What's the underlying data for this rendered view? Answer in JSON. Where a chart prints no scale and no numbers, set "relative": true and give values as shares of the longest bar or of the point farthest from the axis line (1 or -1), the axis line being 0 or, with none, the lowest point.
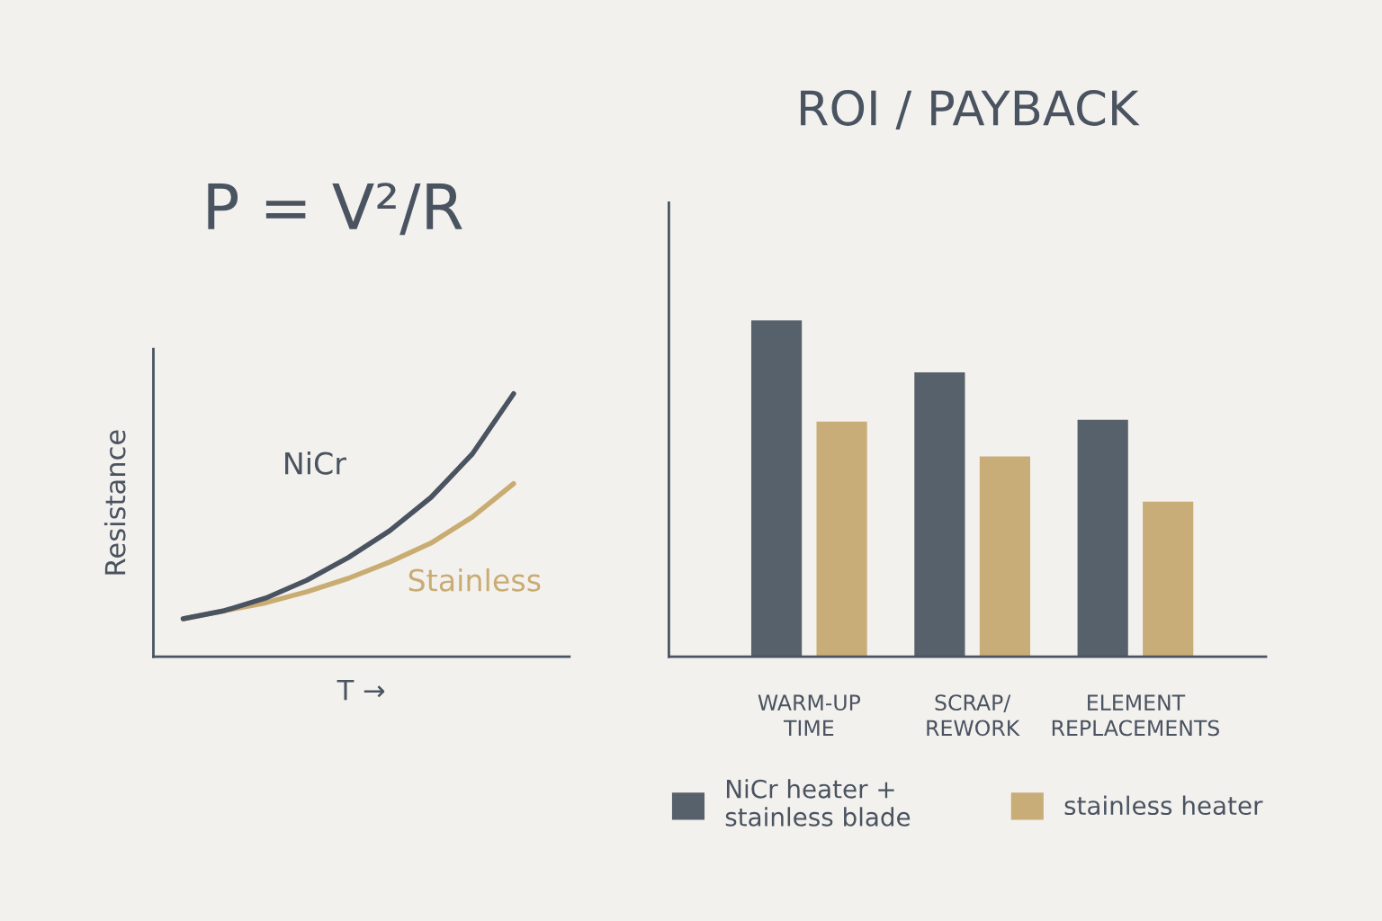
{
  "chart_data": [
    {
      "type": "line",
      "xlabel": "T →",
      "ylabel": "Resistance",
      "annotations": [
        "P = V²/R"
      ],
      "relative": true,
      "tick_labels": false,
      "grid": false,
      "categories": [
        null,
        null,
        null,
        null,
        null,
        null,
        null,
        null,
        null
      ],
      "series": [
        {
          "name": "NiCr",
          "color": "#4a5360",
          "values": [
            0.144,
            0.175,
            0.223,
            0.291,
            0.377,
            0.479,
            0.606,
            0.771,
            1.0
          ]
        },
        {
          "name": "Stainless",
          "color": "#c9ac72",
          "values": [
            0.144,
            0.175,
            0.205,
            0.247,
            0.298,
            0.36,
            0.432,
            0.531,
            0.658
          ]
        }
      ]
    },
    {
      "type": "bar",
      "title": "ROI / PAYBACK",
      "relative": true,
      "tick_labels": "x",
      "grid": false,
      "legend": "bottom",
      "categories": [
        "WARM-UP\nTIME",
        "SCRAP/\nREWORK",
        "ELEMENT\nREPLACEMENTS"
      ],
      "series": [
        {
          "name": "NiCr heater +\nstainless blade",
          "color": "#57616b",
          "values": [
            1.0,
            0.845,
            0.704
          ]
        },
        {
          "name": "stainless heater",
          "color": "#c8ad78",
          "values": [
            0.699,
            0.595,
            0.461
          ]
        }
      ]
    }
  ]
}
